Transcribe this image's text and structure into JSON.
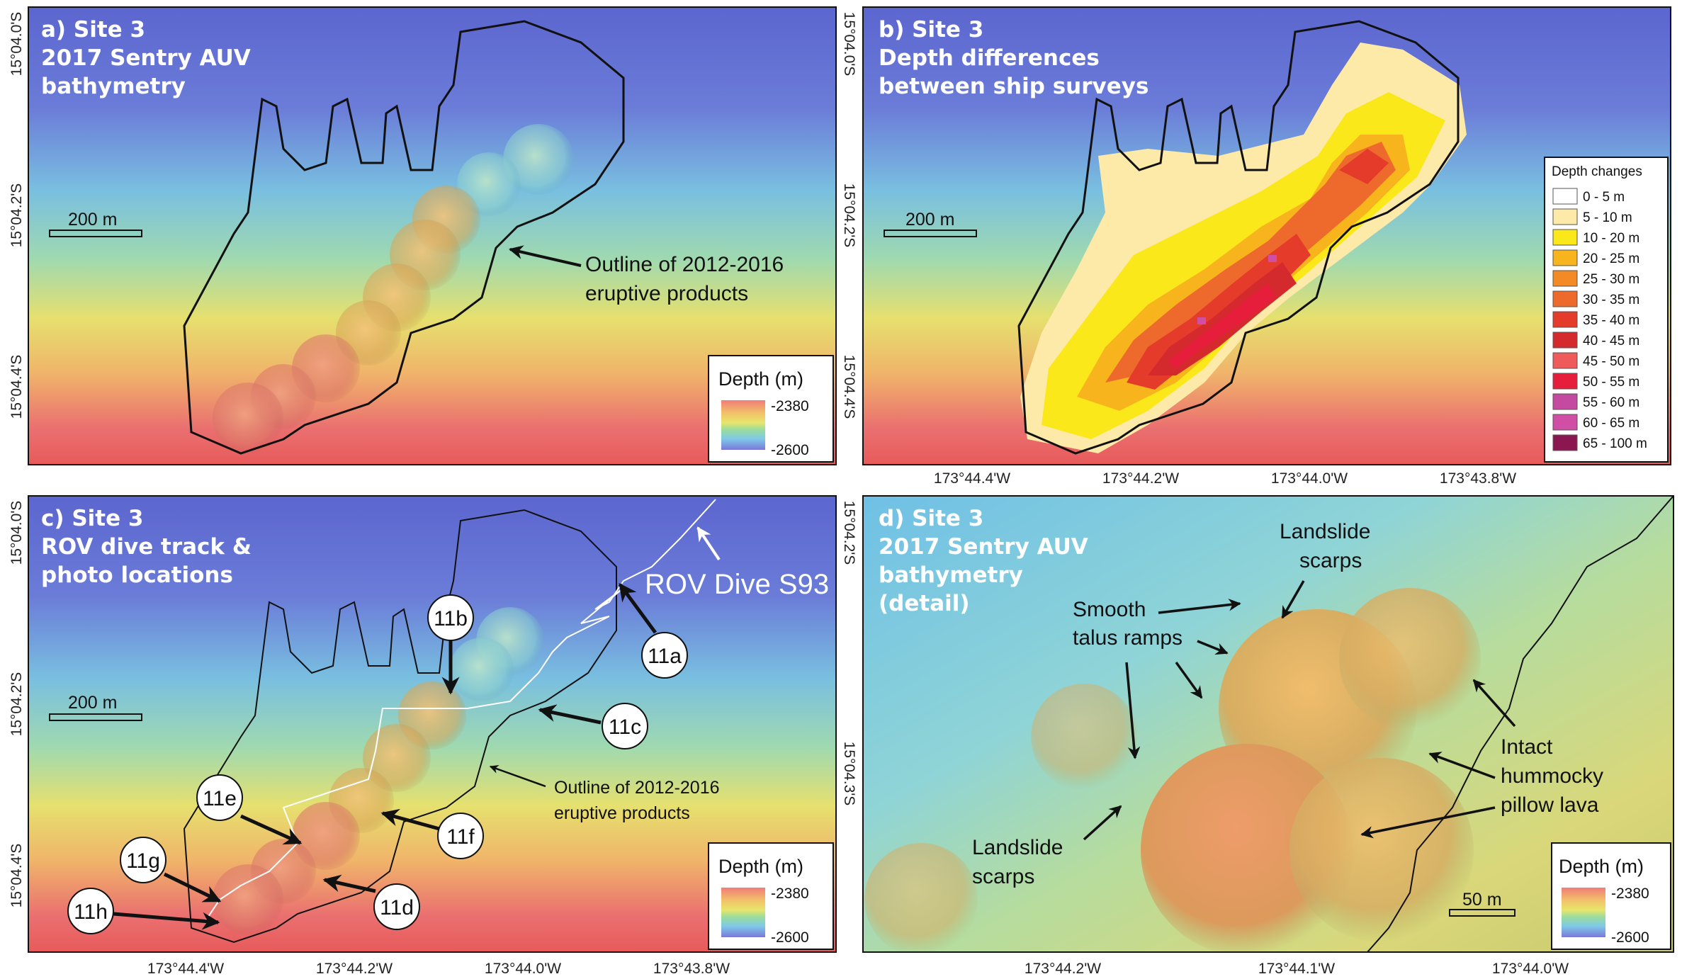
{
  "panels": {
    "a": {
      "title": [
        "a) Site 3",
        "2017 Sentry AUV",
        "bathymetry"
      ],
      "annotation": [
        "Outline of 2012-2016",
        "eruptive products"
      ],
      "scale_label": "200 m"
    },
    "b": {
      "title": [
        "b) Site 3",
        "Depth differences",
        "between ship surveys"
      ],
      "scale_label": "200 m"
    },
    "c": {
      "title": [
        "c) Site 3",
        "ROV dive track &",
        "photo locations"
      ],
      "annotation": [
        "Outline of 2012-2016",
        "eruptive products"
      ],
      "dive_label": "ROV Dive S93",
      "scale_label": "200 m",
      "photo_labels": [
        "11a",
        "11b",
        "11c",
        "11d",
        "11e",
        "11f",
        "11g",
        "11h"
      ]
    },
    "d": {
      "title": [
        "d) Site 3",
        "2017 Sentry AUV",
        "bathymetry",
        "(detail)"
      ],
      "labels": {
        "landslide_top": [
          "Landslide",
          "scarps"
        ],
        "smooth_talus": [
          "Smooth",
          "talus ramps"
        ],
        "landslide_bottom": [
          "Landslide",
          "scarps"
        ],
        "intact": [
          "Intact",
          "hummocky",
          "pillow lava"
        ]
      },
      "scale_label": "50 m"
    }
  },
  "depth_legend": {
    "title": "Depth (m)",
    "max": "-2380",
    "min": "-2600"
  },
  "depth_change_legend": {
    "title": "Depth changes",
    "classes": [
      {
        "label": "0 - 5 m",
        "color": "#ffffff"
      },
      {
        "label": "5 - 10 m",
        "color": "#fde9a8"
      },
      {
        "label": "10 - 20 m",
        "color": "#fbe81a"
      },
      {
        "label": "20 - 25 m",
        "color": "#f8b41c"
      },
      {
        "label": "25 - 30 m",
        "color": "#f38a25"
      },
      {
        "label": "30 - 35 m",
        "color": "#ed6a2c"
      },
      {
        "label": "35 - 40 m",
        "color": "#e43b2a"
      },
      {
        "label": "40 - 45 m",
        "color": "#d42a2e"
      },
      {
        "label": "45 - 50 m",
        "color": "#ef5a5a"
      },
      {
        "label": "50 - 55 m",
        "color": "#e61e3c"
      },
      {
        "label": "55 - 60 m",
        "color": "#c44a9f"
      },
      {
        "label": "60 - 65 m",
        "color": "#d04fa5"
      },
      {
        "label": "65 - 100 m",
        "color": "#8b1750"
      }
    ]
  },
  "axes": {
    "top_lon": [
      "173°44.4'W",
      "173°44.2'W",
      "173°44.0'W",
      "173°43.8'W"
    ],
    "top_lat_left": [
      "15°04.0'S",
      "15°04.2'S",
      "15°04.4'S"
    ],
    "top_lat_right": [
      "15°04.0'S",
      "15°04.2'S",
      "15°04.4'S"
    ],
    "bottom_lon_left": [
      "173°44.4'W",
      "173°44.2'W",
      "173°44.0'W",
      "173°43.8'W"
    ],
    "bottom_lat_left": [
      "15°04.0'S",
      "15°04.2'S",
      "15°04.4'S"
    ],
    "bottom_lat_right": [
      "15°04.2'S",
      "15°04.3'S"
    ],
    "bottom_lon_right": [
      "173°44.2'W",
      "173°44.1'W",
      "173°44.0'W"
    ]
  }
}
